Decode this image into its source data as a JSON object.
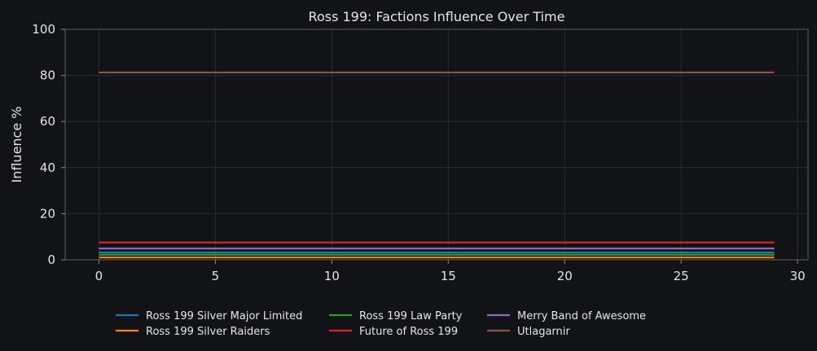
{
  "chart_data": {
    "type": "line",
    "title": "Ross 199: Factions Influence Over Time",
    "xlabel": "",
    "ylabel": "Influence %",
    "xlim": [
      -1.45,
      30.45
    ],
    "ylim": [
      0,
      100
    ],
    "x_ticks": [
      0,
      5,
      10,
      15,
      20,
      25,
      30
    ],
    "y_ticks": [
      0,
      20,
      40,
      60,
      80,
      100
    ],
    "grid": true,
    "legend_position": "bottom",
    "x": [
      0,
      29
    ],
    "series": [
      {
        "name": "Ross 199 Silver Major Limited",
        "color": "#1f77b4",
        "values": [
          3.2,
          3.2
        ]
      },
      {
        "name": "Ross 199 Silver Raiders",
        "color": "#ff7f0e",
        "values": [
          1.0,
          1.0
        ]
      },
      {
        "name": "Ross 199 Law Party",
        "color": "#2ca02c",
        "values": [
          2.2,
          2.2
        ]
      },
      {
        "name": "Future of Ross 199",
        "color": "#d62728",
        "values": [
          7.5,
          7.5
        ]
      },
      {
        "name": "Merry Band of Awesome",
        "color": "#9467bd",
        "values": [
          4.9,
          4.9
        ]
      },
      {
        "name": "Utlagarnir",
        "color": "#8c564b",
        "values": [
          81.3,
          81.3
        ]
      }
    ]
  }
}
